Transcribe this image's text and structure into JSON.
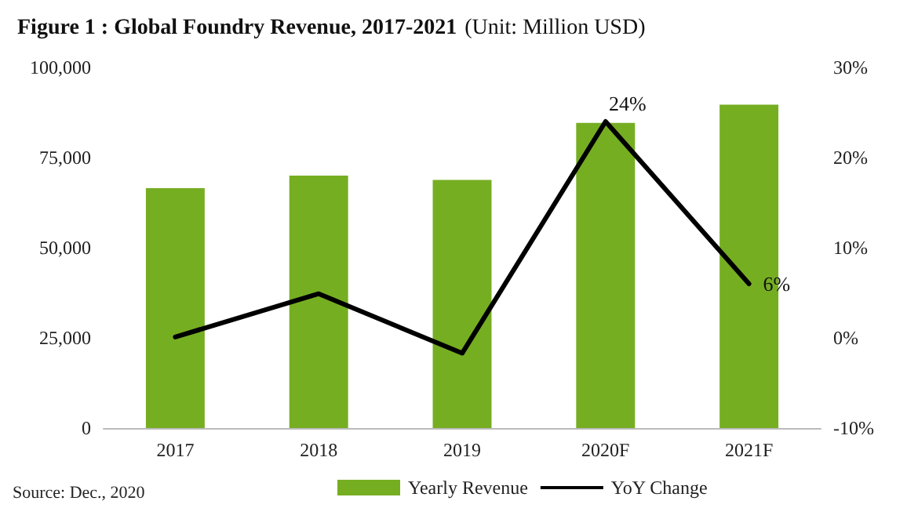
{
  "chart_data": {
    "type": "bar",
    "title": "Figure 1 : Global Foundry Revenue, 2017-2021",
    "subtitle": "(Unit: Million USD)",
    "categories": [
      "2017",
      "2018",
      "2019",
      "2020F",
      "2021F"
    ],
    "series": [
      {
        "name": "Yearly Revenue",
        "color": "#76ae22",
        "values": [
          66500,
          70000,
          68800,
          84600,
          89700
        ]
      },
      {
        "name": "YoY Change",
        "type": "line",
        "axis": "y2",
        "color": "#000000",
        "values": [
          0.1,
          4.9,
          -1.7,
          24,
          6
        ],
        "value_labels": [
          null,
          null,
          null,
          "24%",
          "6%"
        ]
      }
    ],
    "ylim": [
      0,
      100000
    ],
    "yticks": [
      {
        "value": 0,
        "label": "0"
      },
      {
        "value": 25000,
        "label": "25,000"
      },
      {
        "value": 50000,
        "label": "50,000"
      },
      {
        "value": 75000,
        "label": "75,000"
      },
      {
        "value": 100000,
        "label": "100,000"
      }
    ],
    "y2lim": [
      -10,
      30
    ],
    "y2ticks": [
      {
        "value": -10,
        "label": "-10%"
      },
      {
        "value": 0,
        "label": "0%"
      },
      {
        "value": 10,
        "label": "10%"
      },
      {
        "value": 20,
        "label": "20%"
      },
      {
        "value": 30,
        "label": "30%"
      }
    ],
    "grid": false,
    "legend": "bottom",
    "marker": "none",
    "line_style": "solid",
    "annotations": [
      "Source: Dec., 2020"
    ]
  }
}
